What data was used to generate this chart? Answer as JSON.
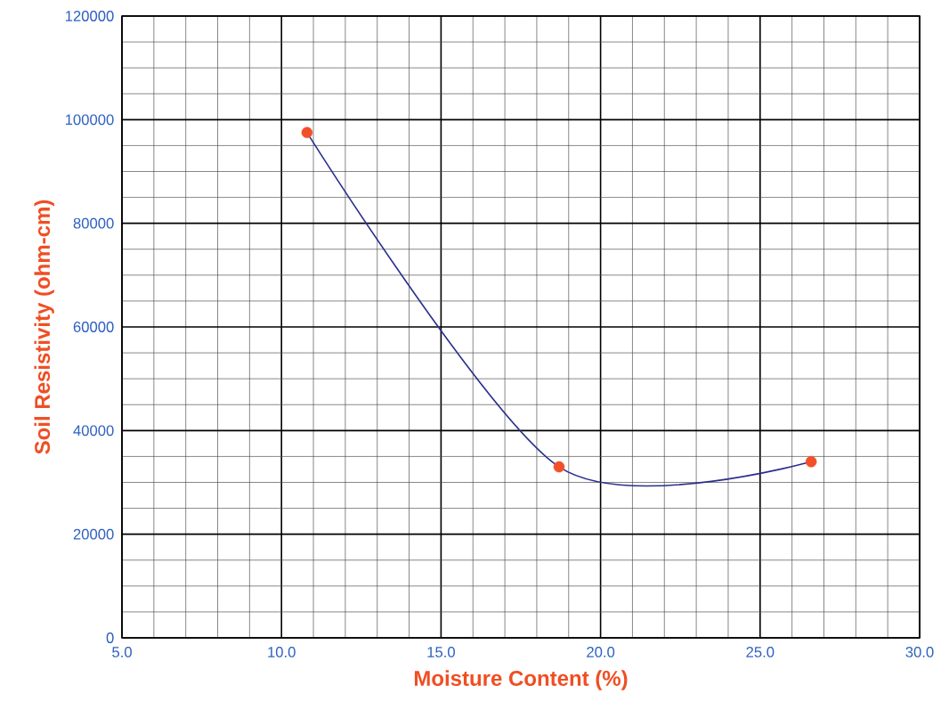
{
  "chart_data": {
    "type": "line",
    "xlabel": "Moisture Content (%)",
    "ylabel": "Soil Resistivity (ohm-cm)",
    "xlim": [
      5,
      30
    ],
    "ylim": [
      0,
      120000
    ],
    "xticks": [
      {
        "value": 5,
        "label": "5.0"
      },
      {
        "value": 10,
        "label": "10.0"
      },
      {
        "value": 15,
        "label": "15.0"
      },
      {
        "value": 20,
        "label": "20.0"
      },
      {
        "value": 25,
        "label": "25.0"
      },
      {
        "value": 30,
        "label": "30.0"
      }
    ],
    "yticks": [
      0,
      20000,
      40000,
      60000,
      80000,
      100000,
      120000
    ],
    "grid": true,
    "line_style": "solid",
    "series": [
      {
        "marker": "none",
        "color": "#2a2f8c",
        "x": [
          10.8,
          18.7,
          26.6
        ],
        "values": [
          97500,
          33000,
          34000
        ]
      },
      {
        "type": "scatter",
        "marker": "circle",
        "color": "#f2502a",
        "x": [
          10.8,
          18.7,
          26.6
        ],
        "values": [
          97500,
          33000,
          34000
        ]
      }
    ]
  }
}
